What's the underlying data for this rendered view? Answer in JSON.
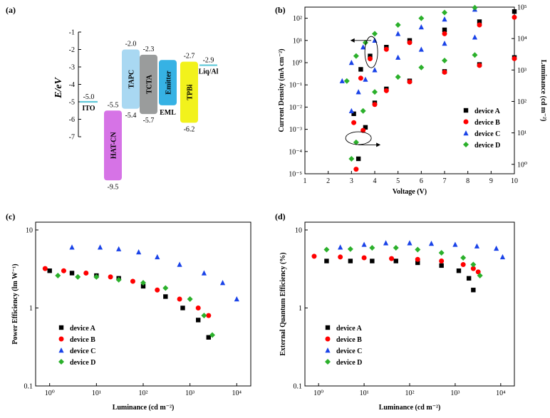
{
  "panel_labels": {
    "a": "(a)",
    "b": "(b)",
    "c": "(c)",
    "d": "(d)"
  },
  "chart_data": [
    {
      "type": "energy-level-diagram",
      "panel": "(a)",
      "ylabel": "E/eV",
      "ylim": [
        -7,
        -1
      ],
      "yticks": [
        "-1",
        "-2",
        "-3",
        "-4",
        "-5",
        "-6",
        "-7"
      ],
      "layers": [
        {
          "name": "ITO",
          "kind": "line",
          "level": -5.0,
          "level_label": "-5.0",
          "color": "#5fc8d8"
        },
        {
          "name": "HAT-CN",
          "kind": "box",
          "top": -5.5,
          "bottom": -9.5,
          "top_label": "-5.5",
          "bottom_label": "-9.5",
          "color": "#d673e6"
        },
        {
          "name": "TAPC",
          "kind": "box",
          "top": -2.0,
          "bottom": -5.4,
          "top_label": "-2.0",
          "bottom_label": "-5.4",
          "color": "#a9d8f2"
        },
        {
          "name": "TCTA",
          "kind": "box",
          "top": -2.3,
          "bottom": -5.7,
          "top_label": "-2.3",
          "bottom_label": "-5.7",
          "color": "#9a9c9c"
        },
        {
          "name": "Emitter",
          "kind": "box",
          "top": -2.6,
          "bottom": -5.2,
          "top_label": "",
          "bottom_label": "",
          "color": "#36b2e4",
          "caption": "EML"
        },
        {
          "name": "TPBi",
          "kind": "box",
          "top": -2.7,
          "bottom": -6.2,
          "top_label": "-2.7",
          "bottom_label": "-6.2",
          "color": "#f2f21c"
        },
        {
          "name": "Liq/Al",
          "kind": "line",
          "level": -2.9,
          "level_label": "-2.9",
          "color": "#5fc8d8"
        }
      ]
    },
    {
      "type": "scatter",
      "panel": "(b)",
      "xlabel": "Voltage (V)",
      "ylabel": "Current Density (mA cm⁻²)",
      "y2label": "Luminance (cd m⁻²)",
      "xlim": [
        1,
        10
      ],
      "xticks": [
        "1",
        "2",
        "3",
        "4",
        "5",
        "6",
        "7",
        "8",
        "9",
        "10"
      ],
      "ylim_log": [
        -5,
        2.5
      ],
      "yticks": [
        "10⁻⁵",
        "10⁻⁴",
        "10⁻³",
        "10⁻²",
        "10⁻¹",
        "10⁰",
        "10¹",
        "10²"
      ],
      "y2lim_log": [
        -0.3,
        5
      ],
      "y2ticks": [
        "10⁰",
        "10¹",
        "10²",
        "10³",
        "10⁴",
        "10⁵"
      ],
      "legend_position": "bottom-right",
      "series": [
        {
          "name": "device A",
          "marker": "square",
          "color": "#000000",
          "current": {
            "x": [
              3.1,
              3.4,
              3.8,
              4.5,
              5.5,
              7,
              8.5,
              10
            ],
            "y": [
              0.005,
              0.5,
              2,
              5,
              10,
              30,
              70,
              200
            ]
          },
          "luminance": {
            "x": [
              3.3,
              3.6,
              4,
              4.5,
              5.5,
              7,
              8.5,
              10
            ],
            "y": [
              1.5,
              15,
              90,
              250,
              450,
              900,
              1500,
              2500
            ]
          }
        },
        {
          "name": "device B",
          "marker": "circle",
          "color": "#ff0000",
          "current": {
            "x": [
              3.1,
              3.4,
              3.8,
              4.5,
              5.5,
              7,
              8.5,
              10
            ],
            "y": [
              0.002,
              0.2,
              1.5,
              4,
              8,
              20,
              50,
              110
            ]
          },
          "luminance": {
            "x": [
              3.2,
              3.5,
              4,
              4.5,
              5.5,
              7,
              8.5,
              10
            ],
            "y": [
              0.7,
              12,
              80,
              220,
              420,
              850,
              1400,
              2300
            ]
          }
        },
        {
          "name": "device C",
          "marker": "triangle",
          "color": "#1a43e8",
          "current": {
            "x": [
              2.6,
              3,
              3.5,
              4,
              5,
              6,
              7,
              8.3
            ],
            "y": [
              0.15,
              1,
              5,
              10,
              20,
              40,
              90,
              250
            ]
          },
          "luminance": {
            "x": [
              3,
              3.3,
              3.6,
              4,
              5,
              6,
              7,
              8.3
            ],
            "y": [
              50,
              200,
              500,
              1000,
              2500,
              4500,
              7000,
              11000
            ]
          }
        },
        {
          "name": "device D",
          "marker": "diamond",
          "color": "#2bb02b",
          "current": {
            "x": [
              2.8,
              3.2,
              3.6,
              4,
              5,
              6,
              7,
              8.3
            ],
            "y": [
              0.15,
              2,
              8,
              20,
              50,
              100,
              180,
              300
            ]
          },
          "luminance": {
            "x": [
              3,
              3.2,
              3.5,
              4,
              5,
              6,
              7,
              8.3
            ],
            "y": [
              1.5,
              5,
              50,
              200,
              600,
              1200,
              2000,
              3000
            ]
          }
        }
      ],
      "annotations": [
        "arrow-left at upper ellipse",
        "arrow-right at lower ellipse"
      ]
    },
    {
      "type": "scatter",
      "panel": "(c)",
      "xlabel": "Luminance (cd m⁻²)",
      "ylabel": "Power Efficiency (lm W⁻¹)",
      "xlim_log": [
        -0.3,
        4.3
      ],
      "xticks": [
        "10⁰",
        "10¹",
        "10²",
        "10³",
        "10⁴"
      ],
      "ylim_log": [
        -1,
        1.1
      ],
      "yticks": [
        "0.1",
        "1",
        "10"
      ],
      "legend_position": "bottom-left",
      "series": [
        {
          "name": "device A",
          "marker": "square",
          "color": "#000000",
          "x": [
            1,
            3,
            10,
            30,
            100,
            300,
            700,
            1500,
            2500
          ],
          "y": [
            3.0,
            2.8,
            2.6,
            2.4,
            1.9,
            1.4,
            1.0,
            0.7,
            0.42
          ]
        },
        {
          "name": "device B",
          "marker": "circle",
          "color": "#ff0000",
          "x": [
            0.8,
            2,
            6,
            20,
            60,
            200,
            600,
            1500,
            2500
          ],
          "y": [
            3.2,
            3.0,
            2.8,
            2.5,
            2.2,
            1.7,
            1.3,
            1.0,
            0.8
          ]
        },
        {
          "name": "device C",
          "marker": "triangle",
          "color": "#1a43e8",
          "x": [
            3,
            12,
            30,
            80,
            200,
            600,
            2000,
            5000,
            10000
          ],
          "y": [
            6.0,
            6.0,
            5.7,
            5.2,
            4.5,
            3.6,
            2.8,
            2.1,
            1.3
          ]
        },
        {
          "name": "device D",
          "marker": "diamond",
          "color": "#2bb02b",
          "x": [
            1.5,
            4,
            10,
            30,
            100,
            300,
            1000,
            2000,
            3000
          ],
          "y": [
            2.6,
            2.5,
            2.5,
            2.3,
            2.1,
            1.8,
            1.3,
            0.8,
            0.45
          ]
        }
      ]
    },
    {
      "type": "scatter",
      "panel": "(d)",
      "xlabel": "Luminance (cd m⁻²)",
      "ylabel": "External Quantum Efficiency (%)",
      "xlim_log": [
        -0.3,
        4.3
      ],
      "xticks": [
        "10⁰",
        "10¹",
        "10²",
        "10³",
        "10⁴"
      ],
      "ylim_log": [
        -1,
        1.1
      ],
      "yticks": [
        "0.1",
        "1",
        "10"
      ],
      "legend_position": "bottom-left",
      "series": [
        {
          "name": "device A",
          "marker": "square",
          "color": "#000000",
          "x": [
            1.5,
            5,
            15,
            50,
            150,
            500,
            1200,
            2000,
            2500
          ],
          "y": [
            4.0,
            4.0,
            4.0,
            4.0,
            3.8,
            3.5,
            3.0,
            2.4,
            1.7
          ]
        },
        {
          "name": "device B",
          "marker": "circle",
          "color": "#ff0000",
          "x": [
            0.8,
            3,
            10,
            40,
            150,
            500,
            1500,
            2500,
            3200
          ],
          "y": [
            4.6,
            4.5,
            4.4,
            4.3,
            4.2,
            4.0,
            3.6,
            3.2,
            2.9
          ]
        },
        {
          "name": "device C",
          "marker": "triangle",
          "color": "#1a43e8",
          "x": [
            3,
            10,
            30,
            100,
            300,
            1000,
            3000,
            8000,
            11000
          ],
          "y": [
            6.0,
            6.5,
            6.8,
            6.8,
            6.7,
            6.5,
            6.2,
            5.8,
            4.5
          ]
        },
        {
          "name": "device D",
          "marker": "diamond",
          "color": "#2bb02b",
          "x": [
            1.5,
            5,
            15,
            50,
            150,
            500,
            1500,
            2500,
            3500
          ],
          "y": [
            5.6,
            5.7,
            5.9,
            5.9,
            5.6,
            5.1,
            4.4,
            3.6,
            2.6
          ]
        }
      ]
    }
  ]
}
